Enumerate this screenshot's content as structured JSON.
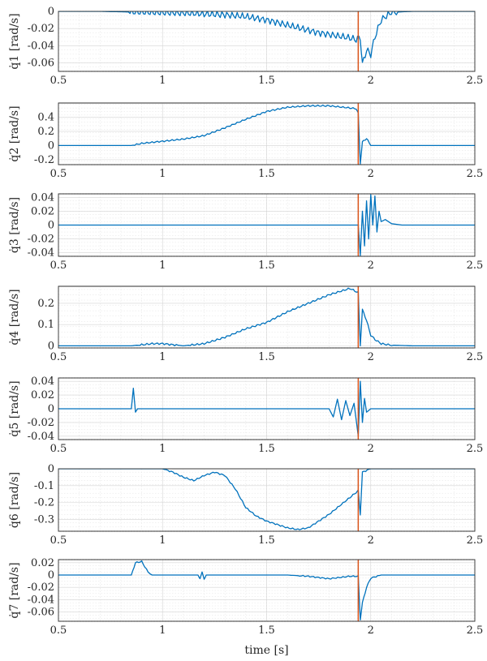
{
  "colors": {
    "series": "#0072BD",
    "event": "#D95319",
    "axes": "#262626"
  },
  "chart_data": {
    "type": "line",
    "xlabel": "time [s]",
    "xlim": [
      0.5,
      2.5
    ],
    "x_ticks": [
      0.5,
      1,
      1.5,
      2,
      2.5
    ],
    "x_tick_labels": [
      "0.5",
      "1",
      "1.5",
      "2",
      "2.5"
    ],
    "grid": "on",
    "event_x": 1.94,
    "subplots": [
      {
        "ylabel": "q̇1 [rad/s]",
        "ylim": [
          -0.07,
          0.0
        ],
        "yticks": [
          0,
          -0.02,
          -0.04,
          -0.06
        ],
        "ytick_labels": [
          "0",
          "-0.02",
          "-0.04",
          "-0.06"
        ],
        "x": [
          0.5,
          0.7,
          0.9,
          1.1,
          1.2,
          1.3,
          1.4,
          1.45,
          1.5,
          1.55,
          1.6,
          1.65,
          1.7,
          1.75,
          1.8,
          1.85,
          1.9,
          1.93,
          1.95,
          1.96,
          1.98,
          2.0,
          2.02,
          2.05,
          2.1,
          2.2,
          2.5
        ],
        "values": [
          0,
          0,
          -0.001,
          -0.002,
          -0.003,
          -0.004,
          -0.006,
          -0.008,
          -0.01,
          -0.013,
          -0.016,
          -0.019,
          -0.022,
          -0.025,
          -0.027,
          -0.029,
          -0.031,
          -0.033,
          -0.03,
          -0.062,
          -0.045,
          -0.05,
          -0.03,
          -0.01,
          -0.001,
          0,
          0
        ],
        "osc_amp": 0.004
      },
      {
        "ylabel": "q̇2 [rad/s]",
        "ylim": [
          -0.27,
          0.6
        ],
        "yticks": [
          0.4,
          0.2,
          0,
          -0.2
        ],
        "ytick_labels": [
          "0.4",
          "0.2",
          "0",
          "-0.2"
        ],
        "x": [
          0.5,
          0.85,
          0.9,
          1.0,
          1.1,
          1.2,
          1.3,
          1.4,
          1.5,
          1.6,
          1.7,
          1.8,
          1.9,
          1.93,
          1.94,
          1.95,
          1.96,
          1.98,
          2.0,
          2.05,
          2.5
        ],
        "values": [
          0,
          0,
          0.03,
          0.06,
          0.09,
          0.14,
          0.25,
          0.37,
          0.48,
          0.54,
          0.56,
          0.56,
          0.53,
          0.52,
          0.45,
          -0.25,
          0.05,
          0.1,
          0.0,
          0.0,
          0
        ],
        "osc_amp": 0.01
      },
      {
        "ylabel": "q̇3 [rad/s]",
        "ylim": [
          -0.045,
          0.045
        ],
        "yticks": [
          0.04,
          0.02,
          0,
          -0.02,
          -0.04
        ],
        "ytick_labels": [
          "0.04",
          "0.02",
          "0",
          "-0.02",
          "-0.04"
        ],
        "x": [
          0.5,
          1.9,
          1.94,
          1.95,
          1.96,
          1.97,
          1.98,
          1.99,
          2.0,
          2.01,
          2.02,
          2.03,
          2.04,
          2.05,
          2.07,
          2.1,
          2.15,
          2.5
        ],
        "values": [
          0,
          0,
          0,
          -0.044,
          0.02,
          -0.03,
          0.035,
          -0.02,
          0.044,
          0.0,
          0.042,
          -0.01,
          0.02,
          0.005,
          0.008,
          0.002,
          0,
          0
        ],
        "osc_amp": 0
      },
      {
        "ylabel": "q̇4 [rad/s]",
        "ylim": [
          -0.01,
          0.28
        ],
        "yticks": [
          0.2,
          0.1,
          0
        ],
        "ytick_labels": [
          "0.2",
          "0.1",
          "0"
        ],
        "x": [
          0.5,
          0.85,
          0.9,
          0.95,
          1.0,
          1.05,
          1.1,
          1.2,
          1.3,
          1.4,
          1.5,
          1.6,
          1.7,
          1.8,
          1.9,
          1.94,
          1.95,
          1.96,
          1.98,
          2.0,
          2.02,
          2.05,
          2.1,
          2.2,
          2.5
        ],
        "values": [
          0,
          0,
          0.005,
          0.01,
          0.01,
          0.005,
          0.0,
          0.01,
          0.04,
          0.08,
          0.11,
          0.16,
          0.2,
          0.24,
          0.27,
          0.25,
          0.0,
          0.17,
          0.12,
          0.05,
          0.03,
          0.01,
          0.003,
          0,
          0
        ],
        "osc_amp": 0.004
      },
      {
        "ylabel": "q̇5 [rad/s]",
        "ylim": [
          -0.045,
          0.045
        ],
        "yticks": [
          0.04,
          0.02,
          0,
          -0.02,
          -0.04
        ],
        "ytick_labels": [
          "0.04",
          "0.02",
          "0",
          "-0.02",
          "-0.04"
        ],
        "x": [
          0.5,
          0.85,
          0.86,
          0.87,
          0.88,
          1.8,
          1.82,
          1.84,
          1.86,
          1.88,
          1.9,
          1.92,
          1.94,
          1.95,
          1.96,
          1.97,
          1.98,
          2.0,
          2.5
        ],
        "values": [
          0,
          0,
          0.03,
          -0.005,
          0,
          0,
          -0.012,
          0.014,
          -0.016,
          0.012,
          -0.01,
          0.008,
          -0.04,
          0.04,
          -0.02,
          0.015,
          -0.005,
          0,
          0
        ],
        "osc_amp": 0
      },
      {
        "ylabel": "q̇6 [rad/s]",
        "ylim": [
          -0.37,
          0.0
        ],
        "yticks": [
          0,
          -0.1,
          -0.2,
          -0.3
        ],
        "ytick_labels": [
          "0",
          "-0.1",
          "-0.2",
          "-0.3"
        ],
        "x": [
          0.5,
          1.0,
          1.05,
          1.1,
          1.15,
          1.2,
          1.25,
          1.3,
          1.35,
          1.4,
          1.45,
          1.5,
          1.55,
          1.6,
          1.65,
          1.7,
          1.75,
          1.8,
          1.85,
          1.9,
          1.93,
          1.94,
          1.95,
          1.96,
          2.0,
          2.5
        ],
        "values": [
          0,
          0,
          -0.02,
          -0.05,
          -0.07,
          -0.04,
          -0.02,
          -0.04,
          -0.12,
          -0.23,
          -0.28,
          -0.31,
          -0.33,
          -0.35,
          -0.36,
          -0.35,
          -0.31,
          -0.27,
          -0.22,
          -0.17,
          -0.14,
          -0.13,
          -0.27,
          -0.02,
          0.0,
          0
        ],
        "osc_amp": 0.004
      },
      {
        "ylabel": "q̇7 [rad/s]",
        "ylim": [
          -0.075,
          0.025
        ],
        "yticks": [
          0.02,
          0,
          -0.02,
          -0.04,
          -0.06
        ],
        "ytick_labels": [
          "0.02",
          "0",
          "-0.02",
          "-0.04",
          "-0.06"
        ],
        "x": [
          0.5,
          0.85,
          0.87,
          0.9,
          0.93,
          0.95,
          1.17,
          1.18,
          1.19,
          1.2,
          1.21,
          1.6,
          1.7,
          1.75,
          1.8,
          1.85,
          1.9,
          1.94,
          1.95,
          1.96,
          1.98,
          2.0,
          2.05,
          2.5
        ],
        "values": [
          0,
          0,
          0.02,
          0.022,
          0.005,
          0,
          0,
          -0.005,
          0.004,
          -0.006,
          0,
          0,
          -0.002,
          -0.004,
          -0.006,
          -0.004,
          -0.002,
          -0.002,
          -0.072,
          -0.045,
          -0.02,
          -0.005,
          0,
          0
        ],
        "osc_amp": 0.001
      }
    ]
  }
}
